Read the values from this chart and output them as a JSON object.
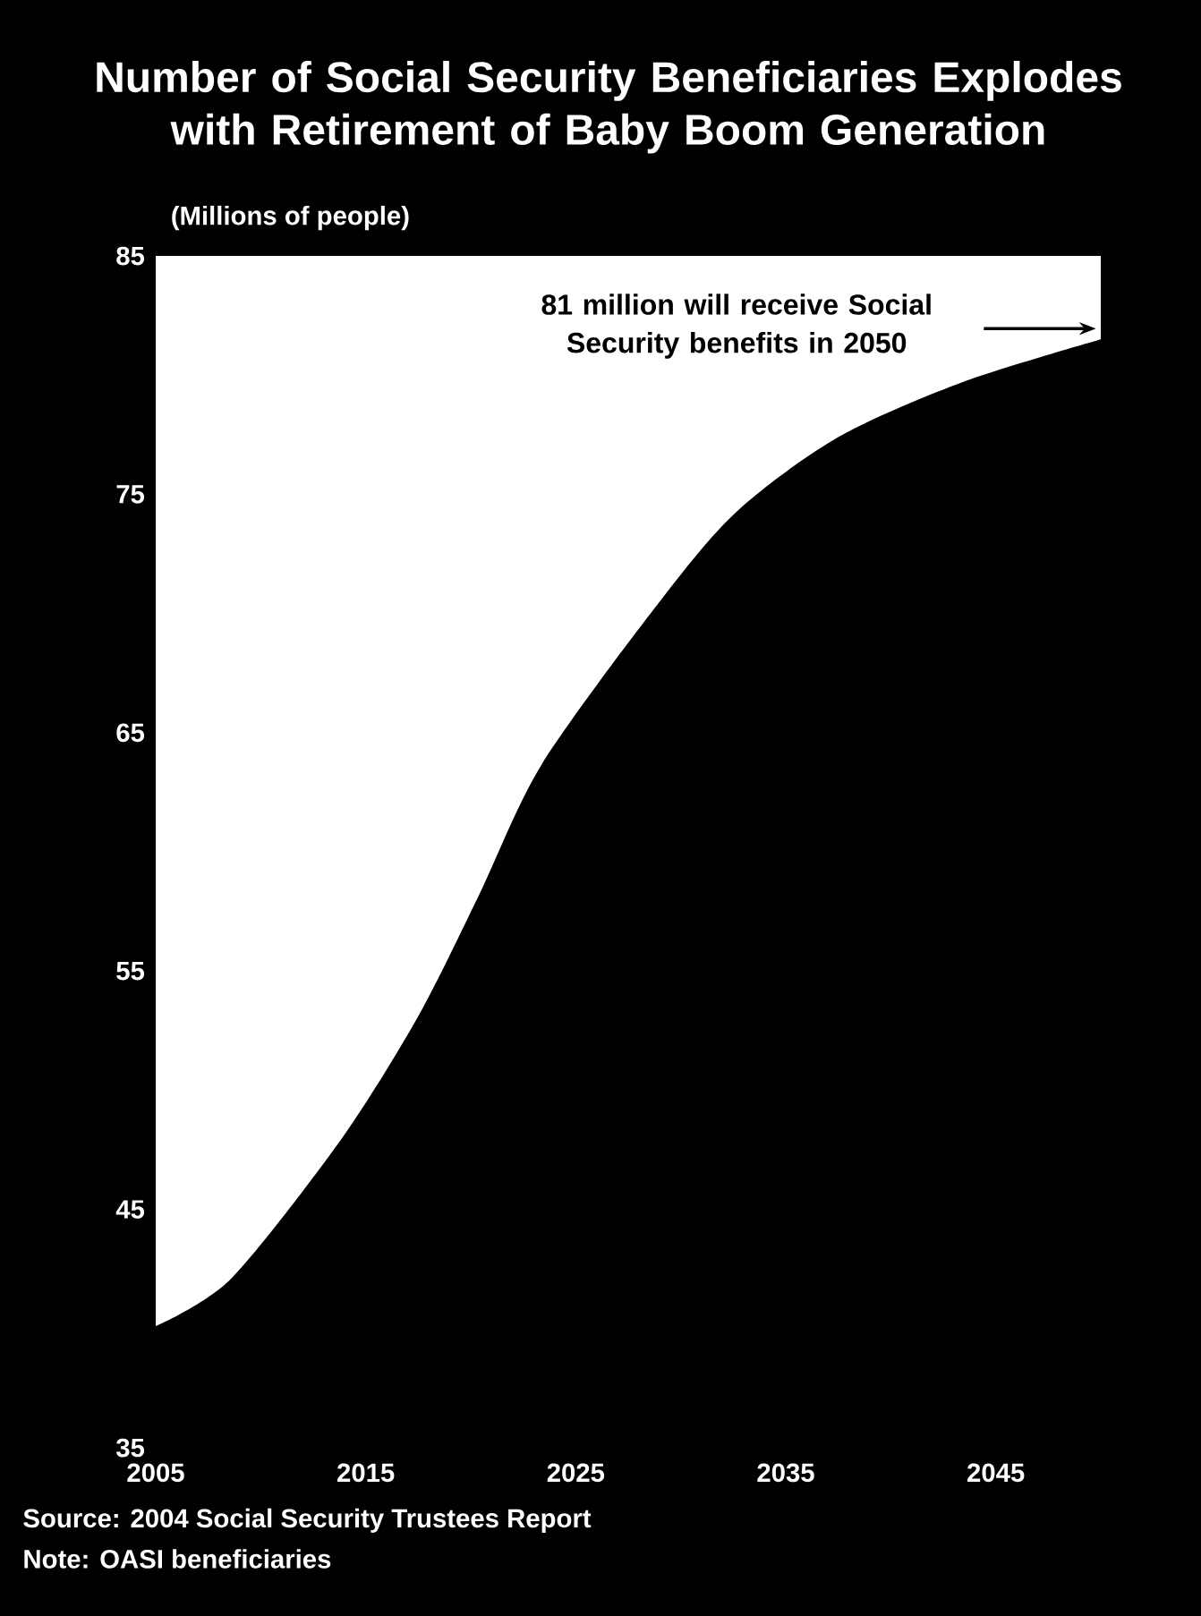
{
  "chart_data": {
    "type": "area",
    "title": "Number of Social Security Beneficiaries Explodes with Retirement of Baby Boom Generation",
    "ylabel": "(Millions of people)",
    "x": [
      2005,
      2008.6,
      2013.8,
      2017.5,
      2020.4,
      2023.4,
      2029.0,
      2032.7,
      2037.5,
      2043.4,
      2050
    ],
    "values": [
      40.1,
      42.1,
      47.9,
      53.1,
      58.2,
      63.7,
      70.5,
      74.3,
      77.4,
      79.7,
      81.5
    ],
    "color": "#000000",
    "xlim": [
      2005,
      2050
    ],
    "xticks": [
      2005,
      2015,
      2025,
      2035,
      2045
    ],
    "ylim": [
      35,
      85
    ],
    "yticks": [
      35,
      45,
      55,
      65,
      75,
      85
    ],
    "annotations": [
      "81 million will receive Social Security benefits in 2050",
      "Source:  2004 Social Security Trustees Report",
      "Note:  OASI beneficiaries"
    ]
  }
}
